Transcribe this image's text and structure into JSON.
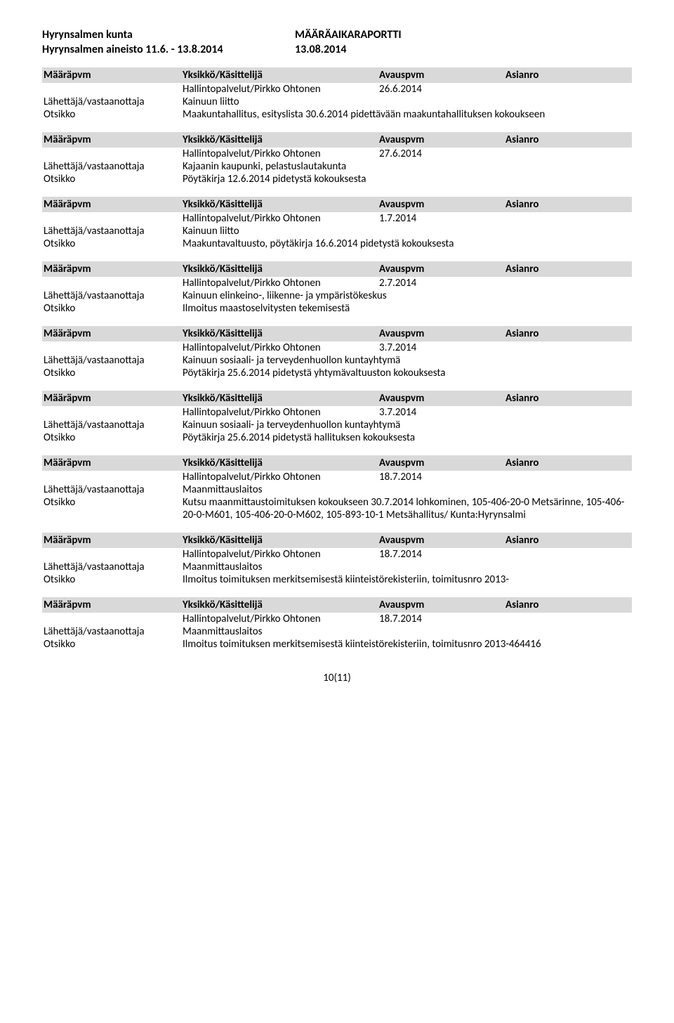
{
  "header": {
    "org": "Hyrynsalmen kunta",
    "report": "MÄÄRÄAIKARAPORTTI",
    "subtitle": "Hyrynsalmen aineisto 11.6. - 13.8.2014",
    "report_date": "13.08.2014"
  },
  "cols": {
    "c1": "Määräpvm",
    "c2": "Yksikkö/Käsittelijä",
    "c3": "Avauspvm",
    "c4": "Asianro"
  },
  "labels": {
    "sender": "Lähettäjä/vastaanottaja",
    "title": "Otsikko"
  },
  "entries": [
    {
      "handler": "Hallintopalvelut/Pirkko Ohtonen",
      "date": "26.6.2014",
      "sender": "Kainuun liitto",
      "title": "Maakuntahallitus, esityslista 30.6.2014 pidettävään maakuntahallituksen kokoukseen"
    },
    {
      "handler": "Hallintopalvelut/Pirkko Ohtonen",
      "date": "27.6.2014",
      "sender": "Kajaanin kaupunki, pelastuslautakunta",
      "title": "Pöytäkirja 12.6.2014 pidetystä kokouksesta"
    },
    {
      "handler": "Hallintopalvelut/Pirkko Ohtonen",
      "date": "1.7.2014",
      "sender": "Kainuun liitto",
      "title": "Maakuntavaltuusto, pöytäkirja 16.6.2014 pidetystä kokouksesta"
    },
    {
      "handler": "Hallintopalvelut/Pirkko Ohtonen",
      "date": "2.7.2014",
      "sender": "Kainuun elinkeino-, liikenne- ja ympäristökeskus",
      "title": "Ilmoitus maastoselvitysten tekemisestä"
    },
    {
      "handler": "Hallintopalvelut/Pirkko Ohtonen",
      "date": "3.7.2014",
      "sender": "Kainuun sosiaali- ja terveydenhuollon kuntayhtymä",
      "title": "Pöytäkirja 25.6.2014 pidetystä yhtymävaltuuston kokouksesta"
    },
    {
      "handler": "Hallintopalvelut/Pirkko Ohtonen",
      "date": "3.7.2014",
      "sender": "Kainuun sosiaali- ja terveydenhuollon kuntayhtymä",
      "title": "Pöytäkirja 25.6.2014 pidetystä hallituksen kokouksesta"
    },
    {
      "handler": "Hallintopalvelut/Pirkko Ohtonen",
      "date": "18.7.2014",
      "sender": "Maanmittauslaitos",
      "title": "Kutsu maanmittaustoimituksen kokoukseen 30.7.2014 lohkominen, 105-406-20-0 Metsärinne, 105-406-20-0-M601, 105-406-20-0-M602, 105-893-10-1 Metsähallitus/ Kunta:Hyrynsalmi"
    },
    {
      "handler": "Hallintopalvelut/Pirkko Ohtonen",
      "date": "18.7.2014",
      "sender": "Maanmittauslaitos",
      "title": "Ilmoitus toimituksen merkitsemisestä kiinteistörekisteriin, toimitusnro 2013-"
    },
    {
      "handler": "Hallintopalvelut/Pirkko Ohtonen",
      "date": "18.7.2014",
      "sender": "Maanmittauslaitos",
      "title": "Ilmoitus toimituksen merkitsemisestä kiinteistörekisteriin, toimitusnro 2013-464416"
    }
  ],
  "pagenum": "10(11)"
}
